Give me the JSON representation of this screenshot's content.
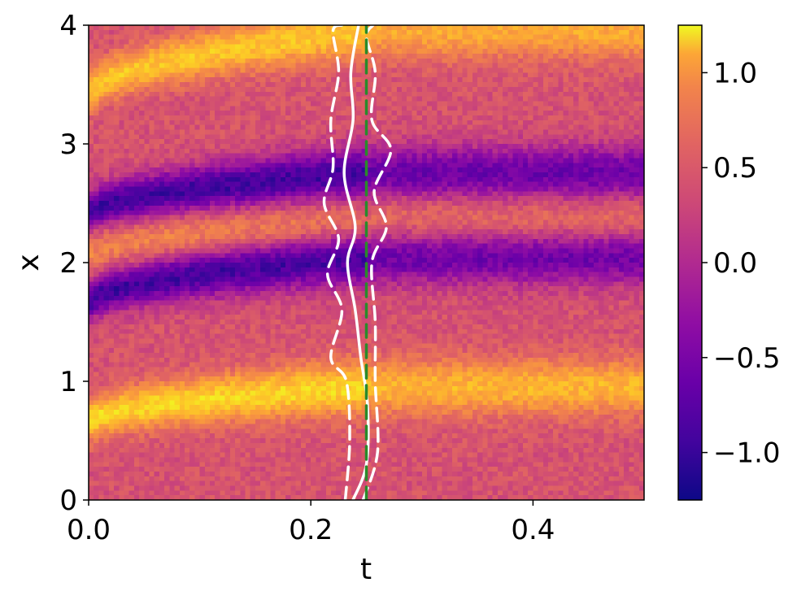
{
  "chart_data": {
    "type": "heatmap",
    "title": "",
    "xlabel": "t",
    "ylabel": "x",
    "xlim": [
      0.0,
      0.5
    ],
    "ylim": [
      0.0,
      4.0
    ],
    "xticks": [
      "0.0",
      "0.2",
      "0.4"
    ],
    "xtick_values": [
      0.0,
      0.2,
      0.4
    ],
    "yticks": [
      "0",
      "1",
      "2",
      "3",
      "4"
    ],
    "ytick_values": [
      0,
      1,
      2,
      3,
      4
    ],
    "colormap": "plasma",
    "color_range": [
      -1.25,
      1.25
    ],
    "colorbar_ticks": [
      "1.0",
      "0.5",
      "0.0",
      "−0.5",
      "−1.0"
    ],
    "colorbar_tick_values": [
      1.0,
      0.5,
      0.0,
      -0.5,
      -1.0
    ],
    "bands_description": "heatmap field values: bright (about +1) and dark (about -1) stripes in t<0.25 which flatten into horizontal bands after t≈0.25",
    "bands": [
      {
        "x_at_t0": 3.4,
        "x_at_t_end": 3.95,
        "value": 0.85
      },
      {
        "x_at_t0": 2.4,
        "x_at_t_end": 2.75,
        "value": -1.1
      },
      {
        "x_at_t0": 2.05,
        "x_at_t_end": 2.35,
        "value": 0.4
      },
      {
        "x_at_t0": 1.65,
        "x_at_t_end": 2.05,
        "value": -1.1
      },
      {
        "x_at_t0": 0.65,
        "x_at_t_end": 0.95,
        "value": 0.95
      }
    ],
    "overlay_lines": [
      {
        "style": "solid",
        "color": "#ffffff",
        "points": [
          [
            0.238,
            0.0
          ],
          [
            0.25,
            0.3
          ],
          [
            0.251,
            0.8
          ],
          [
            0.245,
            1.2
          ],
          [
            0.24,
            1.6
          ],
          [
            0.233,
            2.0
          ],
          [
            0.24,
            2.3
          ],
          [
            0.23,
            2.75
          ],
          [
            0.238,
            3.2
          ],
          [
            0.236,
            3.6
          ],
          [
            0.243,
            4.0
          ]
        ]
      },
      {
        "style": "dashed",
        "color": "#ffffff",
        "points": [
          [
            0.231,
            0.0
          ],
          [
            0.235,
            0.5
          ],
          [
            0.232,
            1.0
          ],
          [
            0.218,
            1.2
          ],
          [
            0.228,
            1.6
          ],
          [
            0.215,
            1.9
          ],
          [
            0.225,
            2.2
          ],
          [
            0.212,
            2.5
          ],
          [
            0.22,
            2.8
          ],
          [
            0.218,
            3.2
          ],
          [
            0.225,
            3.6
          ],
          [
            0.22,
            3.95
          ],
          [
            0.228,
            4.0
          ]
        ]
      },
      {
        "style": "dashed",
        "color": "#ffffff",
        "points": [
          [
            0.247,
            0.0
          ],
          [
            0.26,
            0.4
          ],
          [
            0.258,
            1.0
          ],
          [
            0.258,
            1.5
          ],
          [
            0.255,
            2.0
          ],
          [
            0.268,
            2.3
          ],
          [
            0.257,
            2.6
          ],
          [
            0.272,
            2.95
          ],
          [
            0.255,
            3.2
          ],
          [
            0.258,
            3.6
          ],
          [
            0.25,
            3.9
          ],
          [
            0.256,
            4.0
          ]
        ]
      },
      {
        "style": "dashed",
        "color": "#2a8a2a",
        "points": [
          [
            0.25,
            0.0
          ],
          [
            0.25,
            4.0
          ]
        ]
      }
    ]
  }
}
